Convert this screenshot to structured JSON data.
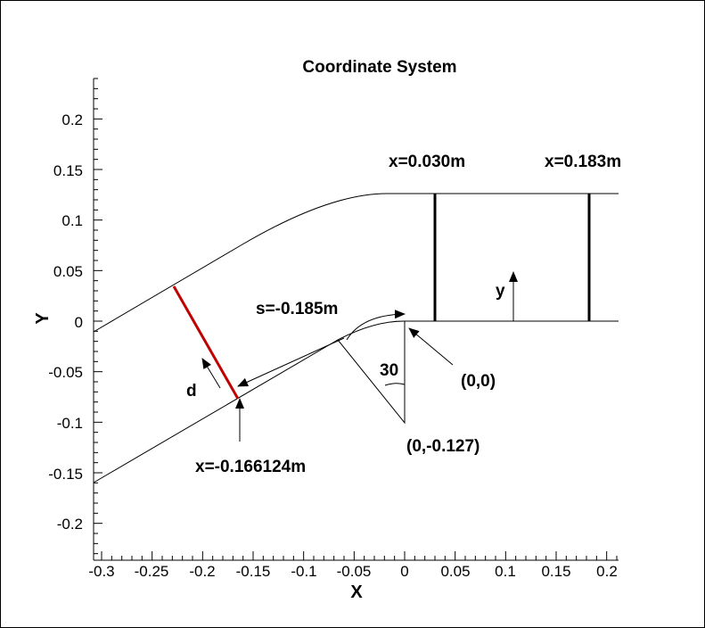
{
  "title": "Coordinate System",
  "x_axis": {
    "label": "X",
    "ticks": [
      "-0.3",
      "-0.25",
      "-0.2",
      "-0.15",
      "-0.1",
      "-0.05",
      "0",
      "0.05",
      "0.1",
      "0.15",
      "0.2"
    ]
  },
  "y_axis": {
    "label": "Y",
    "ticks": [
      "0.2",
      "0.15",
      "0.1",
      "0.05",
      "0",
      "-0.05",
      "-0.1",
      "-0.15",
      "-0.2"
    ]
  },
  "annotations": {
    "x_030": "x=0.030m",
    "x_183": "x=0.183m",
    "y_label": "y",
    "s_label": "s=-0.185m",
    "d_label": "d",
    "angle_label": "30",
    "origin_label": "(0,0)",
    "center_label": "(0,-0.127)",
    "x_neg_label": "x=-0.166124m"
  },
  "colors": {
    "section_line": "#c00000",
    "geometry": "#000000"
  }
}
